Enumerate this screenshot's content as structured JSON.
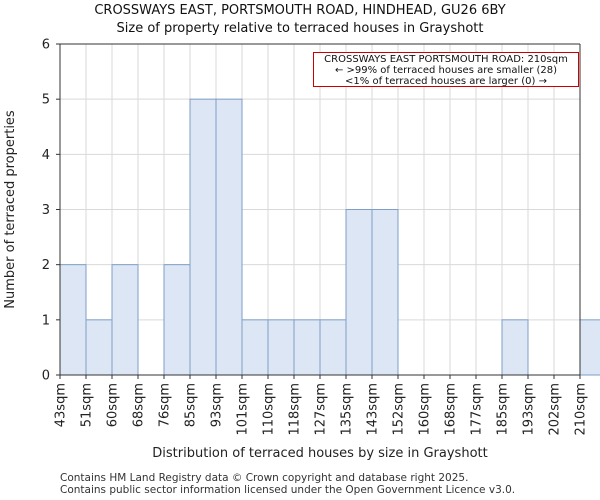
{
  "title": "CROSSWAYS EAST, PORTSMOUTH ROAD, HINDHEAD, GU26 6BY",
  "subtitle": "Size of property relative to terraced houses in Grayshott",
  "footer": [
    "Contains HM Land Registry data © Crown copyright and database right 2025.",
    "Contains public sector information licensed under the Open Government Licence v3.0."
  ],
  "annotation": {
    "line1": "CROSSWAYS EAST PORTSMOUTH ROAD: 210sqm",
    "line2": "← >99% of terraced houses are smaller (28)",
    "line3": "<1% of terraced houses are larger (0) →"
  },
  "colors": {
    "bar_fill": "#dce6f4",
    "bar_stroke": "#7f9fc7",
    "marker": "#cc0000",
    "grid": "#d9d9d9"
  },
  "chart_data": {
    "type": "bar",
    "title": "CROSSWAYS EAST, PORTSMOUTH ROAD, HINDHEAD, GU26 6BY",
    "subtitle": "Size of property relative to terraced houses in Grayshott",
    "xlabel": "Distribution of terraced houses by size in Grayshott",
    "ylabel": "Number of terraced properties",
    "categories": [
      "43sqm",
      "51sqm",
      "60sqm",
      "68sqm",
      "76sqm",
      "85sqm",
      "93sqm",
      "101sqm",
      "110sqm",
      "118sqm",
      "127sqm",
      "135sqm",
      "143sqm",
      "152sqm",
      "160sqm",
      "168sqm",
      "177sqm",
      "185sqm",
      "193sqm",
      "202sqm",
      "210sqm"
    ],
    "values": [
      2,
      1,
      2,
      0,
      2,
      5,
      5,
      1,
      1,
      1,
      1,
      3,
      3,
      0,
      0,
      0,
      0,
      1,
      0,
      0,
      1
    ],
    "ylim": [
      0,
      6
    ],
    "yticks": [
      0,
      1,
      2,
      3,
      4,
      5,
      6
    ],
    "grid": true,
    "marker": {
      "label": "210sqm",
      "index": 21
    }
  }
}
